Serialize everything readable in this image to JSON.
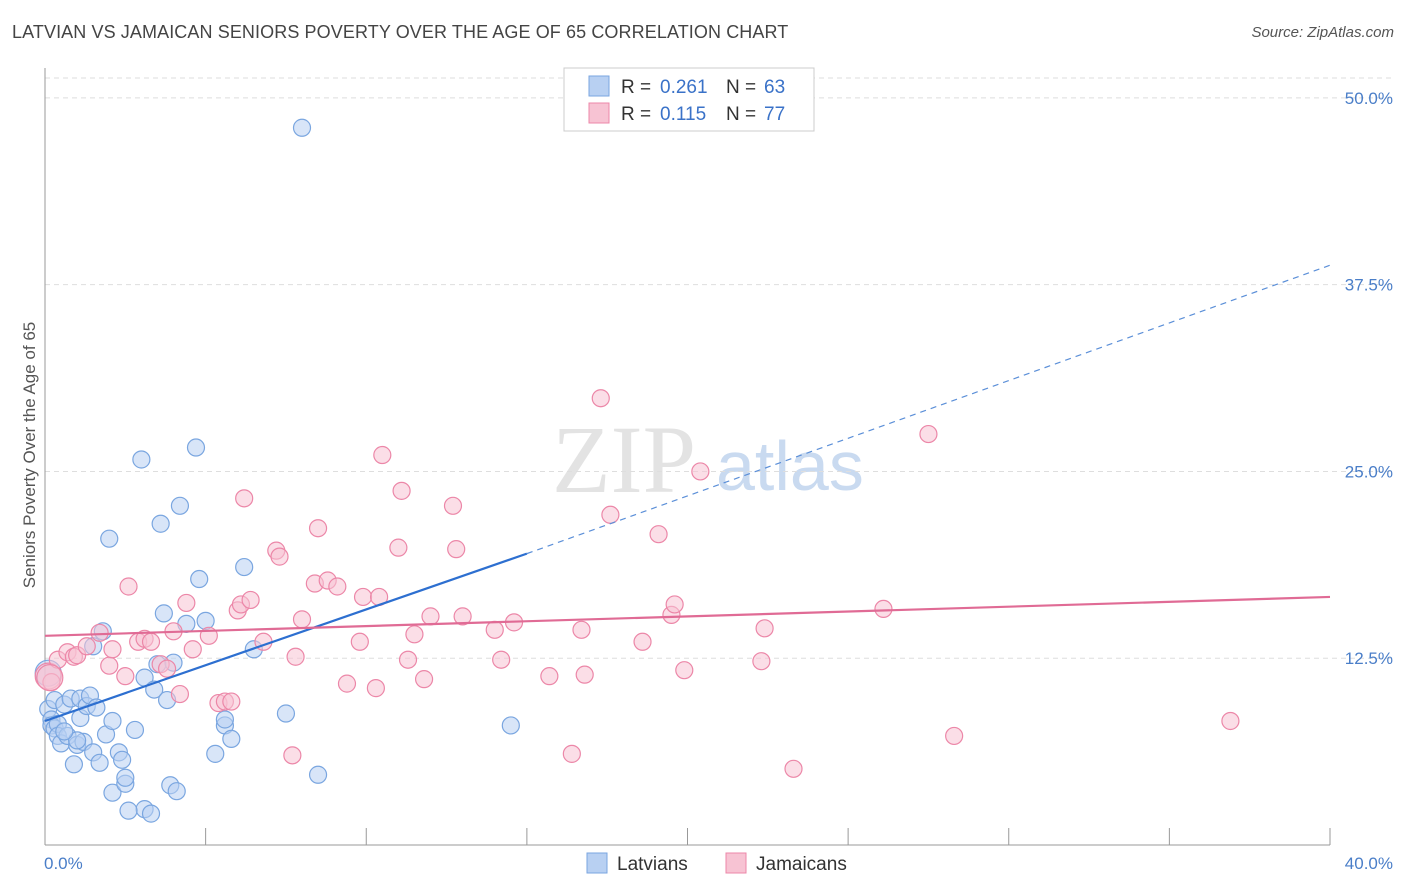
{
  "title": "LATVIAN VS JAMAICAN SENIORS POVERTY OVER THE AGE OF 65 CORRELATION CHART",
  "source": "Source: ZipAtlas.com",
  "watermark": {
    "zip": "ZIP",
    "atlas": "atlas"
  },
  "legend": {
    "rows": [
      {
        "r_label": "R =",
        "r_value": "0.261",
        "n_label": "N =",
        "n_value": "63",
        "color": "#a9c6ef"
      },
      {
        "r_label": "R =",
        "r_value": "0.115",
        "n_label": "N =",
        "n_value": "77",
        "color": "#f5b3c8"
      }
    ]
  },
  "bottom_legend": [
    "Latvians",
    "Jamaicans"
  ],
  "chart_data": {
    "type": "scatter",
    "title": "LATVIAN VS JAMAICAN SENIORS POVERTY OVER THE AGE OF 65 CORRELATION CHART",
    "xlabel": "",
    "ylabel": "Seniors Poverty Over the Age of 65",
    "xlim": [
      0,
      40
    ],
    "ylim": [
      0,
      52
    ],
    "x_ticks": [
      "0.0%",
      "40.0%"
    ],
    "y_ticks": [
      "12.5%",
      "25.0%",
      "37.5%",
      "50.0%"
    ],
    "y_tick_values": [
      12.5,
      25,
      37.5,
      50
    ],
    "grid": true,
    "legend_position": "top-center",
    "series": [
      {
        "name": "Latvians",
        "color": "#7aa6e0",
        "fill": "#b8d0f2",
        "trend": {
          "x": [
            0,
            15
          ],
          "y": [
            8.3,
            19.5
          ],
          "extended_x": [
            15,
            40
          ],
          "extended_y": [
            19.5,
            38.8
          ]
        },
        "points": [
          [
            0.1,
            11.5
          ],
          [
            0.1,
            9.1
          ],
          [
            0.2,
            8.4
          ],
          [
            0.2,
            8.0
          ],
          [
            0.3,
            9.7
          ],
          [
            0.3,
            7.8
          ],
          [
            0.4,
            8.1
          ],
          [
            0.4,
            7.3
          ],
          [
            0.5,
            6.8
          ],
          [
            0.6,
            9.4
          ],
          [
            0.7,
            7.3
          ],
          [
            0.8,
            9.8
          ],
          [
            0.9,
            5.4
          ],
          [
            1.0,
            6.7
          ],
          [
            1.1,
            8.5
          ],
          [
            1.1,
            9.8
          ],
          [
            1.2,
            6.9
          ],
          [
            1.3,
            9.3
          ],
          [
            1.4,
            10.0
          ],
          [
            1.5,
            6.2
          ],
          [
            1.5,
            13.3
          ],
          [
            1.7,
            5.5
          ],
          [
            1.8,
            14.3
          ],
          [
            1.9,
            7.4
          ],
          [
            2.0,
            20.5
          ],
          [
            2.1,
            3.5
          ],
          [
            2.1,
            8.3
          ],
          [
            2.3,
            6.2
          ],
          [
            2.4,
            5.7
          ],
          [
            2.5,
            4.1
          ],
          [
            2.5,
            4.5
          ],
          [
            2.8,
            7.7
          ],
          [
            3.0,
            25.8
          ],
          [
            3.1,
            2.4
          ],
          [
            3.1,
            11.2
          ],
          [
            3.3,
            2.1
          ],
          [
            3.4,
            10.4
          ],
          [
            3.5,
            12.1
          ],
          [
            3.6,
            21.5
          ],
          [
            3.7,
            15.5
          ],
          [
            3.8,
            9.7
          ],
          [
            3.9,
            4.0
          ],
          [
            4.1,
            3.6
          ],
          [
            4.2,
            22.7
          ],
          [
            4.4,
            14.8
          ],
          [
            4.7,
            26.6
          ],
          [
            4.8,
            17.8
          ],
          [
            5.0,
            15.0
          ],
          [
            5.3,
            6.1
          ],
          [
            5.6,
            8.0
          ],
          [
            5.6,
            8.4
          ],
          [
            5.8,
            7.1
          ],
          [
            6.2,
            18.6
          ],
          [
            6.5,
            13.1
          ],
          [
            7.5,
            8.8
          ],
          [
            8.0,
            48.0
          ],
          [
            8.5,
            4.7
          ],
          [
            14.5,
            8.0
          ],
          [
            2.6,
            2.3
          ],
          [
            1.0,
            7.0
          ],
          [
            0.6,
            7.6
          ],
          [
            4.0,
            12.2
          ],
          [
            1.6,
            9.2
          ]
        ]
      },
      {
        "name": "Jamaicans",
        "color": "#ec87a8",
        "fill": "#f7c3d3",
        "trend": {
          "x": [
            0,
            40
          ],
          "y": [
            14.0,
            16.6
          ]
        },
        "points": [
          [
            0.1,
            11.3
          ],
          [
            0.2,
            10.9
          ],
          [
            0.4,
            12.4
          ],
          [
            0.7,
            12.9
          ],
          [
            0.9,
            12.6
          ],
          [
            1.0,
            12.7
          ],
          [
            1.3,
            13.3
          ],
          [
            1.7,
            14.2
          ],
          [
            2.0,
            12.0
          ],
          [
            2.1,
            13.1
          ],
          [
            2.5,
            11.3
          ],
          [
            2.6,
            17.3
          ],
          [
            2.9,
            13.6
          ],
          [
            3.1,
            13.8
          ],
          [
            3.3,
            13.6
          ],
          [
            3.6,
            12.1
          ],
          [
            3.8,
            11.8
          ],
          [
            4.0,
            14.3
          ],
          [
            4.2,
            10.1
          ],
          [
            4.4,
            16.2
          ],
          [
            4.6,
            13.1
          ],
          [
            5.1,
            14.0
          ],
          [
            5.4,
            9.5
          ],
          [
            5.6,
            9.6
          ],
          [
            5.8,
            9.6
          ],
          [
            6.0,
            15.7
          ],
          [
            6.1,
            16.1
          ],
          [
            6.2,
            23.2
          ],
          [
            6.4,
            16.4
          ],
          [
            6.8,
            13.6
          ],
          [
            7.2,
            19.7
          ],
          [
            7.3,
            19.3
          ],
          [
            7.7,
            6.0
          ],
          [
            7.8,
            12.6
          ],
          [
            8.0,
            15.1
          ],
          [
            8.4,
            17.5
          ],
          [
            8.5,
            21.2
          ],
          [
            8.8,
            17.7
          ],
          [
            9.1,
            17.3
          ],
          [
            9.4,
            10.8
          ],
          [
            9.8,
            13.6
          ],
          [
            9.9,
            16.6
          ],
          [
            10.3,
            10.5
          ],
          [
            10.4,
            16.6
          ],
          [
            10.5,
            26.1
          ],
          [
            11.0,
            19.9
          ],
          [
            11.1,
            23.7
          ],
          [
            11.3,
            12.4
          ],
          [
            11.5,
            14.1
          ],
          [
            11.8,
            11.1
          ],
          [
            12.0,
            15.3
          ],
          [
            12.7,
            22.7
          ],
          [
            12.8,
            19.8
          ],
          [
            13.0,
            15.3
          ],
          [
            14.0,
            14.4
          ],
          [
            14.2,
            12.4
          ],
          [
            14.6,
            14.9
          ],
          [
            15.7,
            11.3
          ],
          [
            16.4,
            6.1
          ],
          [
            16.7,
            14.4
          ],
          [
            16.8,
            11.4
          ],
          [
            17.3,
            29.9
          ],
          [
            17.6,
            22.1
          ],
          [
            18.6,
            13.6
          ],
          [
            19.1,
            20.8
          ],
          [
            19.5,
            15.4
          ],
          [
            19.6,
            16.1
          ],
          [
            19.9,
            11.7
          ],
          [
            20.4,
            25.0
          ],
          [
            22.3,
            12.3
          ],
          [
            22.4,
            14.5
          ],
          [
            23.3,
            5.1
          ],
          [
            26.1,
            15.8
          ],
          [
            27.5,
            27.5
          ],
          [
            28.3,
            7.3
          ],
          [
            36.9,
            8.3
          ],
          [
            0.15,
            11.2
          ]
        ]
      }
    ]
  }
}
